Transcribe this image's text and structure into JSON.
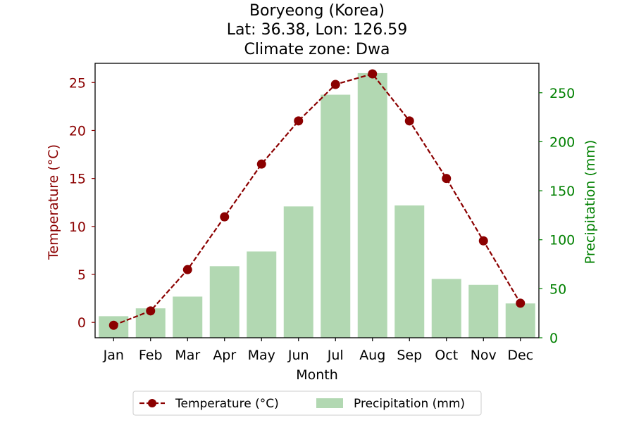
{
  "chart_data": {
    "type": "bar",
    "title_lines": [
      "Boryeong (Korea)",
      "Lat: 36.38, Lon: 126.59",
      "Climate zone: Dwa"
    ],
    "xlabel": "Month",
    "categories": [
      "Jan",
      "Feb",
      "Mar",
      "Apr",
      "May",
      "Jun",
      "Jul",
      "Aug",
      "Sep",
      "Oct",
      "Nov",
      "Dec"
    ],
    "y_left": {
      "label": "Temperature (°C)",
      "lim": [
        -1.6,
        27.0
      ],
      "ticks": [
        0,
        5,
        10,
        15,
        20,
        25
      ],
      "color": "#8b0000"
    },
    "y_right": {
      "label": "Precipitation (mm)",
      "lim": [
        0,
        280
      ],
      "ticks": [
        0,
        50,
        100,
        150,
        200,
        250
      ],
      "color": "#008000"
    },
    "series": [
      {
        "name": "Temperature (°C)",
        "kind": "line",
        "axis": "left",
        "color": "#8b0000",
        "line_style": "dashed",
        "marker": "circle",
        "values": [
          -0.3,
          1.2,
          5.5,
          11.0,
          16.5,
          21.0,
          24.8,
          25.9,
          21.0,
          15.0,
          8.5,
          2.0
        ]
      },
      {
        "name": "Precipitation (mm)",
        "kind": "bar",
        "axis": "right",
        "color": "#b2d8b2",
        "values": [
          22,
          30,
          42,
          73,
          88,
          134,
          248,
          270,
          135,
          60,
          54,
          35
        ]
      }
    ],
    "legend": {
      "placement": "bottom-center",
      "columns": 2
    },
    "grid": false
  }
}
